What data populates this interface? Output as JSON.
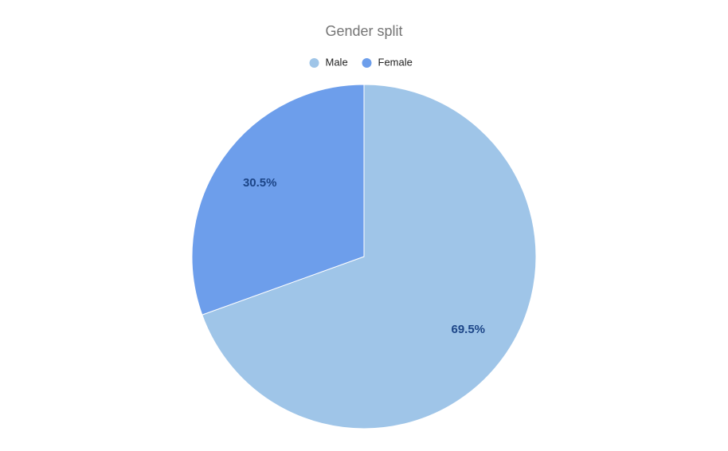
{
  "chart_data": {
    "type": "pie",
    "title": "Gender split",
    "categories": [
      "Male",
      "Female"
    ],
    "values": [
      69.5,
      30.5
    ],
    "value_labels": [
      "69.5%",
      "30.5%"
    ],
    "colors": [
      "#9fc5e8",
      "#6d9eeb"
    ],
    "legend": "top"
  }
}
